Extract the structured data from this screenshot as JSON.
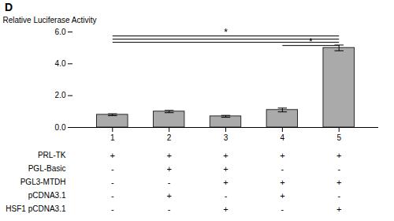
{
  "chart_data": {
    "type": "bar",
    "title": "D",
    "categories": [
      "1",
      "2",
      "3",
      "4",
      "5"
    ],
    "values": [
      0.8,
      1.0,
      0.7,
      1.1,
      5.0
    ],
    "errors": [
      0.06,
      0.07,
      0.06,
      0.12,
      0.18
    ],
    "color": "#aaaaaa",
    "ylabel": "Relative Luciferase Activity",
    "ylim": [
      0,
      6
    ],
    "yticks": [
      0,
      2,
      4,
      6
    ],
    "grid": false,
    "annotations": [
      {
        "x1": "1",
        "x2": "5",
        "y": 5.75,
        "text": "*"
      },
      {
        "x1": "1",
        "x2": "5",
        "y": 5.55
      },
      {
        "x1": "1",
        "x2": "5",
        "y": 5.35
      },
      {
        "x1": "4",
        "x2": "5",
        "y": 5.15,
        "text": "*"
      }
    ],
    "table": {
      "rows": [
        "PRL-TK",
        "PGL-Basic",
        "PGL3-MTDH",
        "pCDNA3.1",
        "HSF1 pCDNA3.1"
      ],
      "cells": [
        [
          "+",
          "+",
          "+",
          "+",
          "+"
        ],
        [
          "-",
          "+",
          "+",
          "-",
          "-"
        ],
        [
          "-",
          "-",
          "+",
          "+",
          "+"
        ],
        [
          "-",
          "+",
          "-",
          "+",
          "-"
        ],
        [
          "-",
          "-",
          "+",
          "-",
          "+"
        ]
      ]
    }
  }
}
